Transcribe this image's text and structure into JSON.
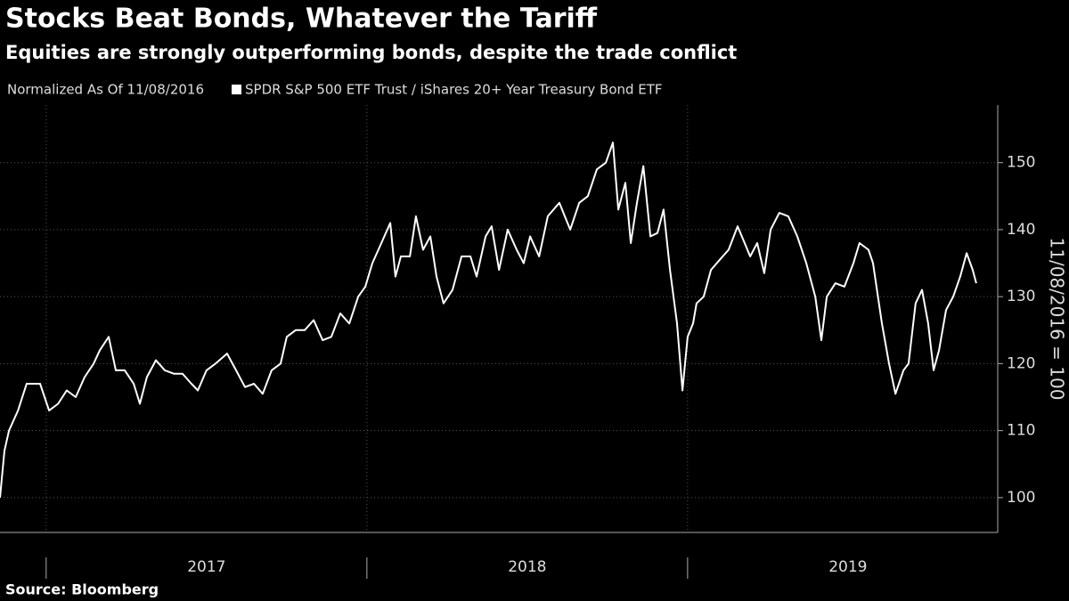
{
  "chart_data": {
    "type": "line",
    "title": "Stocks Beat Bonds, Whatever the Tariff",
    "subtitle": "Equities are strongly outperforming bonds, despite the trade conflict",
    "note": "Normalized As Of 11/08/2016",
    "y_label": "11/08/2016 = 100",
    "source": "Source: Bloomberg",
    "xlim": [
      2016.856,
      2019.967
    ],
    "xticks": [
      2017,
      2018,
      2019
    ],
    "ylim": [
      94.8,
      158.6
    ],
    "yticks": [
      100,
      110,
      120,
      130,
      140,
      150
    ],
    "grid": true,
    "series": [
      {
        "name": "SPDR S&P 500 ETF Trust / iShares 20+ Year Treasury Bond ETF",
        "color": "#ffffff",
        "x": [
          2016.856,
          2016.87,
          2016.884,
          2016.912,
          2016.939,
          2016.981,
          2017.009,
          2017.037,
          2017.064,
          2017.092,
          2017.12,
          2017.148,
          2017.167,
          2017.195,
          2017.217,
          2017.245,
          2017.273,
          2017.292,
          2017.314,
          2017.342,
          2017.37,
          2017.398,
          2017.425,
          2017.453,
          2017.473,
          2017.5,
          2017.528,
          2017.564,
          2017.592,
          2017.62,
          2017.648,
          2017.675,
          2017.703,
          2017.731,
          2017.75,
          2017.778,
          2017.806,
          2017.834,
          2017.862,
          2017.889,
          2017.917,
          2017.945,
          2017.973,
          2017.995,
          2018.017,
          2018.045,
          2018.073,
          2018.089,
          2018.106,
          2018.134,
          2018.153,
          2018.175,
          2018.198,
          2018.217,
          2018.239,
          2018.267,
          2018.295,
          2018.323,
          2018.342,
          2018.37,
          2018.389,
          2018.412,
          2018.439,
          2018.467,
          2018.489,
          2018.509,
          2018.537,
          2018.564,
          2018.6,
          2018.634,
          2018.662,
          2018.689,
          2018.717,
          2018.745,
          2018.767,
          2018.784,
          2018.806,
          2018.823,
          2018.842,
          2018.862,
          2018.884,
          2018.906,
          2018.925,
          2018.945,
          2018.967,
          2018.984,
          2019.0,
          2019.017,
          2019.028,
          2019.05,
          2019.073,
          2019.1,
          2019.128,
          2019.156,
          2019.178,
          2019.195,
          2019.217,
          2019.239,
          2019.259,
          2019.286,
          2019.314,
          2019.342,
          2019.37,
          2019.398,
          2019.417,
          2019.434,
          2019.461,
          2019.489,
          2019.517,
          2019.536,
          2019.564,
          2019.578,
          2019.606,
          2019.628,
          2019.648,
          2019.673,
          2019.689,
          2019.711,
          2019.731,
          2019.75,
          2019.767,
          2019.784,
          2019.806,
          2019.828,
          2019.85,
          2019.87,
          2019.889,
          2019.9
        ],
        "values": [
          100,
          107,
          110,
          113,
          117,
          117,
          113,
          114,
          116,
          115,
          118,
          120,
          122,
          124,
          119,
          119,
          117,
          114,
          118,
          120.5,
          119,
          118.5,
          118.5,
          117,
          116,
          119,
          120,
          121.5,
          119,
          116.5,
          117,
          115.5,
          119,
          120,
          124,
          125,
          125,
          126.5,
          123.5,
          124,
          127.5,
          126,
          130,
          131.5,
          135,
          138,
          141,
          133,
          136,
          136,
          142,
          137,
          139,
          133,
          129,
          131,
          136,
          136,
          133,
          139,
          140.5,
          134,
          140,
          137,
          135,
          139,
          136,
          142,
          144,
          140,
          144,
          145,
          149,
          150,
          153,
          143,
          147,
          138,
          144,
          149.5,
          139,
          139.5,
          143,
          134,
          126,
          116,
          124,
          126,
          129,
          130,
          134,
          135.5,
          137,
          140.5,
          138,
          136,
          138,
          133.5,
          140,
          142.5,
          142,
          139,
          135,
          130,
          123.5,
          130,
          132,
          131.5,
          135,
          138,
          137,
          135,
          126,
          120,
          115.5,
          119,
          120,
          129,
          131,
          126,
          119,
          122,
          128,
          130,
          133,
          136.5,
          134,
          132
        ]
      }
    ]
  }
}
